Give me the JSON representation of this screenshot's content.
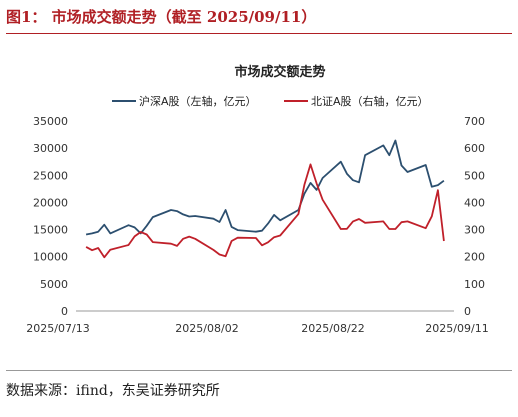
{
  "figure_title": "图1：  市场成交额走势（截至 2025/09/11）",
  "source_text": "数据来源：ifind，东吴证券研究所",
  "colors": {
    "sh_sz": "#2c4f6f",
    "bj": "#c0202a",
    "title": "#b01f24",
    "axis": "#999999"
  },
  "chart_data": {
    "type": "line",
    "title": "市场成交额走势",
    "x_tick_labels": [
      "2025/07/13",
      "2025/08/02",
      "2025/08/22",
      "2025/09/11"
    ],
    "x_range": [
      "2025/07/13",
      "2025/09/12"
    ],
    "y_left": {
      "ticks": [
        0,
        5000,
        10000,
        15000,
        20000,
        25000,
        30000,
        35000
      ],
      "range": [
        0,
        35000
      ]
    },
    "y_right": {
      "ticks": [
        0,
        100,
        200,
        300,
        400,
        500,
        600,
        700
      ],
      "range": [
        0,
        700
      ]
    },
    "grid": false,
    "legend_position": "top",
    "series": [
      {
        "name": "沪深A股（左轴，亿元）",
        "axis": "left",
        "x": [
          "2025/07/14",
          "2025/07/15",
          "2025/07/16",
          "2025/07/17",
          "2025/07/18",
          "2025/07/21",
          "2025/07/22",
          "2025/07/23",
          "2025/07/24",
          "2025/07/25",
          "2025/07/28",
          "2025/07/29",
          "2025/07/30",
          "2025/07/31",
          "2025/08/01",
          "2025/08/04",
          "2025/08/05",
          "2025/08/06",
          "2025/08/07",
          "2025/08/08",
          "2025/08/11",
          "2025/08/12",
          "2025/08/13",
          "2025/08/14",
          "2025/08/15",
          "2025/08/18",
          "2025/08/19",
          "2025/08/20",
          "2025/08/21",
          "2025/08/22",
          "2025/08/25",
          "2025/08/26",
          "2025/08/27",
          "2025/08/28",
          "2025/08/29",
          "2025/09/01",
          "2025/09/02",
          "2025/09/03",
          "2025/09/04",
          "2025/09/05",
          "2025/09/08",
          "2025/09/09",
          "2025/09/10",
          "2025/09/11"
        ],
        "values": [
          14100,
          14300,
          14600,
          15900,
          14300,
          15800,
          15400,
          14300,
          15700,
          17300,
          18600,
          18400,
          17800,
          17400,
          17500,
          17000,
          16400,
          18600,
          15500,
          14900,
          14600,
          14800,
          16100,
          17700,
          16700,
          18600,
          21600,
          23600,
          22300,
          24500,
          27500,
          25300,
          24100,
          23700,
          28700,
          30500,
          28700,
          31400,
          26800,
          25600,
          26900,
          22900,
          23200,
          24000
        ]
      },
      {
        "name": "北证A股（右轴，亿元）",
        "axis": "right",
        "x": [
          "2025/07/14",
          "2025/07/15",
          "2025/07/16",
          "2025/07/17",
          "2025/07/18",
          "2025/07/21",
          "2025/07/22",
          "2025/07/23",
          "2025/07/24",
          "2025/07/25",
          "2025/07/28",
          "2025/07/29",
          "2025/07/30",
          "2025/07/31",
          "2025/08/01",
          "2025/08/04",
          "2025/08/05",
          "2025/08/06",
          "2025/08/07",
          "2025/08/08",
          "2025/08/11",
          "2025/08/12",
          "2025/08/13",
          "2025/08/14",
          "2025/08/15",
          "2025/08/18",
          "2025/08/19",
          "2025/08/20",
          "2025/08/21",
          "2025/08/22",
          "2025/08/25",
          "2025/08/26",
          "2025/08/27",
          "2025/08/28",
          "2025/08/29",
          "2025/09/01",
          "2025/09/02",
          "2025/09/03",
          "2025/09/04",
          "2025/09/05",
          "2025/09/08",
          "2025/09/09",
          "2025/09/10",
          "2025/09/11"
        ],
        "values": [
          236,
          224,
          232,
          198,
          226,
          243,
          275,
          291,
          282,
          254,
          248,
          240,
          266,
          274,
          266,
          225,
          208,
          202,
          258,
          270,
          269,
          242,
          253,
          272,
          278,
          357,
          465,
          540,
          470,
          410,
          302,
          303,
          330,
          339,
          325,
          330,
          302,
          302,
          327,
          330,
          305,
          349,
          445,
          258
        ]
      }
    ]
  }
}
